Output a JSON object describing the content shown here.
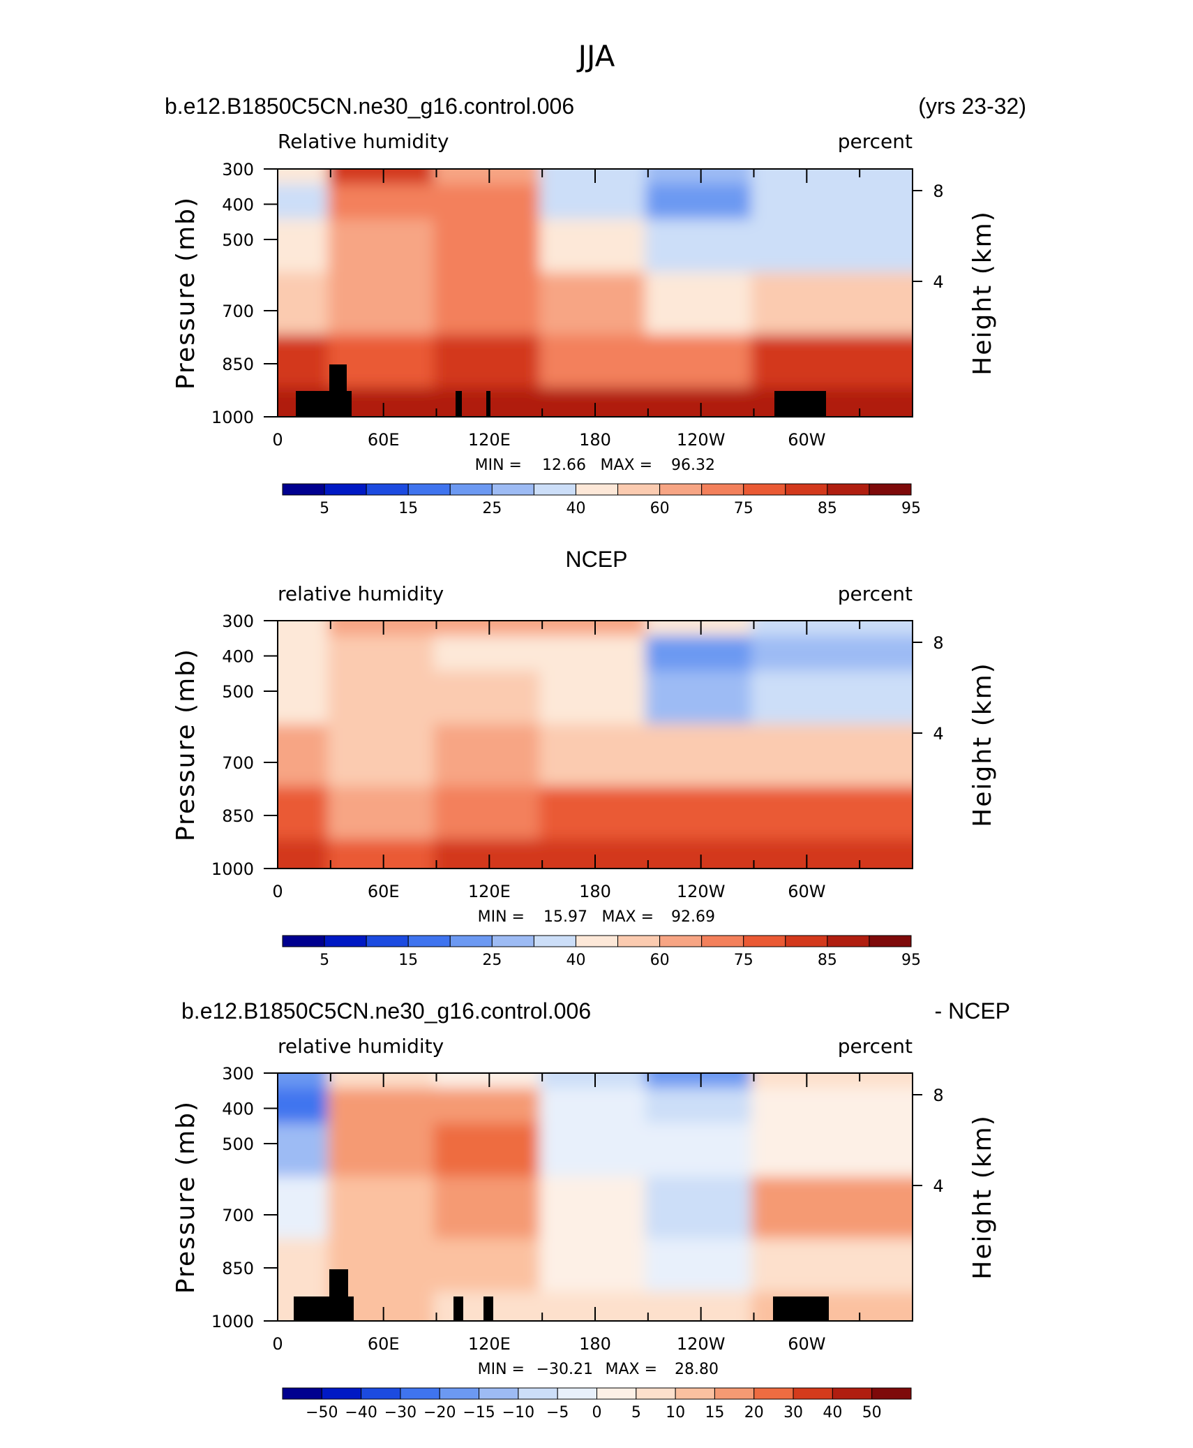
{
  "figure": {
    "season_title": "JJA",
    "colors": {
      "rh_levels": [
        "#00008f",
        "#0019c4",
        "#1c4be0",
        "#3f74ef",
        "#6c99f2",
        "#9dbbf4",
        "#ccdef8",
        "#fde8d8",
        "#fbcbb0",
        "#f7a584",
        "#f3805b",
        "#ea5a34",
        "#d3391c",
        "#b01e10",
        "#7e0a0a"
      ],
      "diff_levels": [
        "#00008f",
        "#0019c4",
        "#1c4be0",
        "#3f74ef",
        "#6c99f2",
        "#9dbbf4",
        "#ccdef8",
        "#e8f0fb",
        "#fdf0e6",
        "#fde0cc",
        "#fbc1a0",
        "#f59a73",
        "#ee6c41",
        "#d43b1c",
        "#b01e10",
        "#7e0a0a"
      ]
    }
  },
  "panels": [
    {
      "left_title": "b.e12.B1850C5CN.ne30_g16.control.006",
      "right_title": "(yrs 23-32)",
      "variable_label": "Relative humidity",
      "units": "percent",
      "min_label": "MIN =",
      "min_value": "12.66",
      "max_label": "MAX =",
      "max_value": "96.32",
      "colorbar_labels": [
        "5",
        "15",
        "25",
        "40",
        "60",
        "75",
        "85",
        "95"
      ]
    },
    {
      "left_title": "",
      "center_title": "NCEP",
      "right_title": "",
      "variable_label": "relative humidity",
      "units": "percent",
      "min_label": "MIN =",
      "min_value": "15.97",
      "max_label": "MAX =",
      "max_value": "92.69",
      "colorbar_labels": [
        "5",
        "15",
        "25",
        "40",
        "60",
        "75",
        "85",
        "95"
      ]
    },
    {
      "left_title": "b.e12.B1850C5CN.ne30_g16.control.006",
      "right_title": "- NCEP",
      "variable_label": "relative humidity",
      "units": "percent",
      "min_label": "MIN =",
      "min_value": "−30.21",
      "max_label": "MAX =",
      "max_value": "28.80",
      "colorbar_labels": [
        "−50",
        "−40",
        "−30",
        "−20",
        "−15",
        "−10",
        "−5",
        "0",
        "5",
        "10",
        "15",
        "20",
        "30",
        "40",
        "50"
      ]
    }
  ],
  "axes": {
    "ylabel": "Pressure (mb)",
    "y2label": "Height (km)",
    "pressure_ticks": [
      "300",
      "400",
      "500",
      "700",
      "850",
      "1000"
    ],
    "height_ticks": [
      "8",
      "4"
    ],
    "lon_ticks": [
      "0",
      "60E",
      "120E",
      "180",
      "120W",
      "60W"
    ]
  },
  "chart_data": [
    {
      "type": "heatmap",
      "title": "Relative humidity",
      "units": "percent",
      "x": [
        0,
        60,
        120,
        180,
        240,
        300
      ],
      "x_labels": [
        "0",
        "60E",
        "120E",
        "180",
        "120W",
        "60W"
      ],
      "y": [
        300,
        400,
        500,
        700,
        850,
        1000
      ],
      "ylabel": "Pressure (mb)",
      "y2label": "Height (km)",
      "min": 12.66,
      "max": 96.32,
      "values": [
        [
          45,
          80,
          62,
          30,
          25,
          38
        ],
        [
          38,
          70,
          70,
          35,
          22,
          30
        ],
        [
          40,
          62,
          72,
          42,
          30,
          38
        ],
        [
          55,
          65,
          72,
          60,
          45,
          50
        ],
        [
          80,
          78,
          82,
          72,
          70,
          82
        ],
        [
          88,
          88,
          88,
          86,
          88,
          88
        ]
      ]
    },
    {
      "type": "heatmap",
      "title": "NCEP",
      "units": "percent",
      "x": [
        0,
        60,
        120,
        180,
        240,
        300
      ],
      "x_labels": [
        "0",
        "60E",
        "120E",
        "180",
        "120W",
        "60W"
      ],
      "y": [
        300,
        400,
        500,
        700,
        850,
        1000
      ],
      "ylabel": "Pressure (mb)",
      "y2label": "Height (km)",
      "min": 15.97,
      "max": 92.69,
      "values": [
        [
          45,
          60,
          62,
          60,
          40,
          35
        ],
        [
          40,
          55,
          45,
          45,
          22,
          28
        ],
        [
          45,
          55,
          55,
          48,
          25,
          38
        ],
        [
          62,
          55,
          62,
          55,
          50,
          55
        ],
        [
          75,
          65,
          70,
          75,
          75,
          75
        ],
        [
          82,
          78,
          80,
          82,
          82,
          80
        ]
      ]
    },
    {
      "type": "heatmap",
      "title": "b.e12.B1850C5CN.ne30_g16.control.006 - NCEP",
      "units": "percent",
      "x": [
        0,
        60,
        120,
        180,
        240,
        300
      ],
      "x_labels": [
        "0",
        "60E",
        "120E",
        "180",
        "120W",
        "60W"
      ],
      "y": [
        300,
        400,
        500,
        700,
        850,
        1000
      ],
      "ylabel": "Pressure (mb)",
      "y2label": "Height (km)",
      "min": -30.21,
      "max": 28.8,
      "values": [
        [
          -20,
          8,
          3,
          -10,
          -20,
          5
        ],
        [
          -25,
          15,
          15,
          -5,
          -10,
          3
        ],
        [
          -15,
          18,
          20,
          -5,
          -5,
          0
        ],
        [
          -5,
          10,
          18,
          2,
          -10,
          15
        ],
        [
          5,
          12,
          12,
          0,
          -5,
          8
        ],
        [
          8,
          10,
          8,
          5,
          8,
          10
        ]
      ]
    }
  ]
}
